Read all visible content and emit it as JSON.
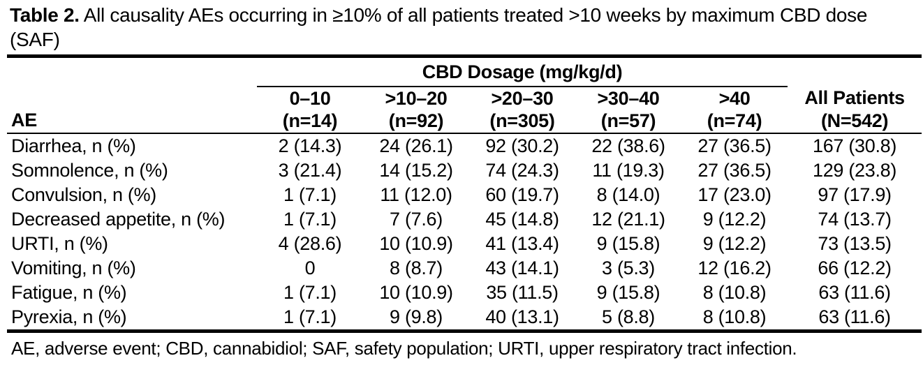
{
  "title": {
    "label": "Table 2.",
    "text": " All causality AEs occurring in ≥10% of all patients treated >10 weeks by maximum CBD dose (SAF)"
  },
  "table": {
    "group_header": "CBD Dosage (mg/kg/d)",
    "row_header": "AE",
    "columns": [
      {
        "range": "0–10",
        "n": "(n=14)"
      },
      {
        "range": ">10–20",
        "n": "(n=92)"
      },
      {
        "range": ">20–30",
        "n": "(n=305)"
      },
      {
        "range": ">30–40",
        "n": "(n=57)"
      },
      {
        "range": ">40",
        "n": "(n=74)"
      }
    ],
    "all_patients": {
      "label": "All Patients",
      "n": "(N=542)"
    },
    "rows": [
      {
        "ae": "Diarrhea, n (%)",
        "values": [
          "2 (14.3)",
          "24 (26.1)",
          "92 (30.2)",
          "22 (38.6)",
          "27 (36.5)",
          "167 (30.8)"
        ]
      },
      {
        "ae": "Somnolence, n (%)",
        "values": [
          "3 (21.4)",
          "14 (15.2)",
          "74 (24.3)",
          "11 (19.3)",
          "27 (36.5)",
          "129 (23.8)"
        ]
      },
      {
        "ae": "Convulsion, n (%)",
        "values": [
          "1 (7.1)",
          "11 (12.0)",
          "60 (19.7)",
          "8 (14.0)",
          "17 (23.0)",
          "97 (17.9)"
        ]
      },
      {
        "ae": "Decreased appetite, n (%)",
        "values": [
          "1 (7.1)",
          "7 (7.6)",
          "45 (14.8)",
          "12 (21.1)",
          "9 (12.2)",
          "74 (13.7)"
        ]
      },
      {
        "ae": "URTI, n (%)",
        "values": [
          "4 (28.6)",
          "10 (10.9)",
          "41 (13.4)",
          "9 (15.8)",
          "9 (12.2)",
          "73 (13.5)"
        ]
      },
      {
        "ae": "Vomiting, n (%)",
        "values": [
          "0",
          "8 (8.7)",
          "43 (14.1)",
          "3 (5.3)",
          "12 (16.2)",
          "66 (12.2)"
        ]
      },
      {
        "ae": "Fatigue, n (%)",
        "values": [
          "1 (7.1)",
          "10 (10.9)",
          "35 (11.5)",
          "9 (15.8)",
          "8 (10.8)",
          "63 (11.6)"
        ]
      },
      {
        "ae": "Pyrexia, n (%)",
        "values": [
          "1 (7.1)",
          "9 (9.8)",
          "40 (13.1)",
          "5 (8.8)",
          "8 (10.8)",
          "63 (11.6)"
        ]
      }
    ]
  },
  "footnote": "AE, adverse event; CBD, cannabidiol; SAF, safety population; URTI, upper respiratory tract infection."
}
